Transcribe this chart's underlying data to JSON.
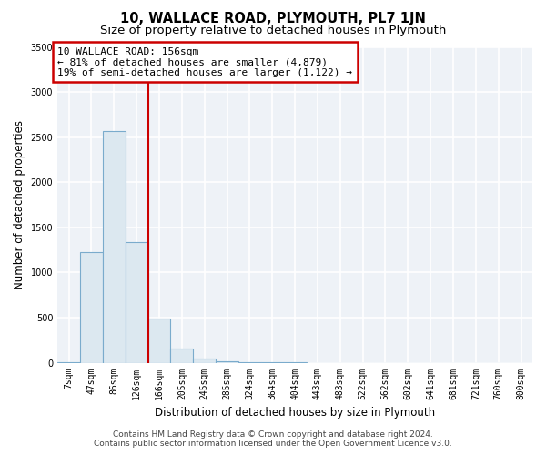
{
  "title": "10, WALLACE ROAD, PLYMOUTH, PL7 1JN",
  "subtitle": "Size of property relative to detached houses in Plymouth",
  "xlabel": "Distribution of detached houses by size in Plymouth",
  "ylabel": "Number of detached properties",
  "footer_line1": "Contains HM Land Registry data © Crown copyright and database right 2024.",
  "footer_line2": "Contains public sector information licensed under the Open Government Licence v3.0.",
  "annotation_line1": "10 WALLACE ROAD: 156sqm",
  "annotation_line2": "← 81% of detached houses are smaller (4,879)",
  "annotation_line3": "19% of semi-detached houses are larger (1,122) →",
  "bar_labels": [
    "7sqm",
    "47sqm",
    "86sqm",
    "126sqm",
    "166sqm",
    "205sqm",
    "245sqm",
    "285sqm",
    "324sqm",
    "364sqm",
    "404sqm",
    "443sqm",
    "483sqm",
    "522sqm",
    "562sqm",
    "602sqm",
    "641sqm",
    "681sqm",
    "721sqm",
    "760sqm",
    "800sqm"
  ],
  "bar_values": [
    7,
    1230,
    2570,
    1340,
    490,
    160,
    50,
    15,
    5,
    2,
    1,
    0,
    0,
    0,
    0,
    0,
    0,
    0,
    0,
    0,
    0
  ],
  "bar_color": "#dce8f0",
  "bar_edge_color": "#7aabcc",
  "vline_x": 3.5,
  "vline_color": "#cc0000",
  "ylim": [
    0,
    3500
  ],
  "yticks": [
    0,
    500,
    1000,
    1500,
    2000,
    2500,
    3000,
    3500
  ],
  "bg_color": "#ffffff",
  "plot_bg_color": "#eef2f7",
  "grid_color": "#ffffff",
  "title_fontsize": 10.5,
  "subtitle_fontsize": 9.5,
  "annotation_fontsize": 8,
  "axis_label_fontsize": 8.5,
  "tick_fontsize": 7,
  "footer_fontsize": 6.5
}
